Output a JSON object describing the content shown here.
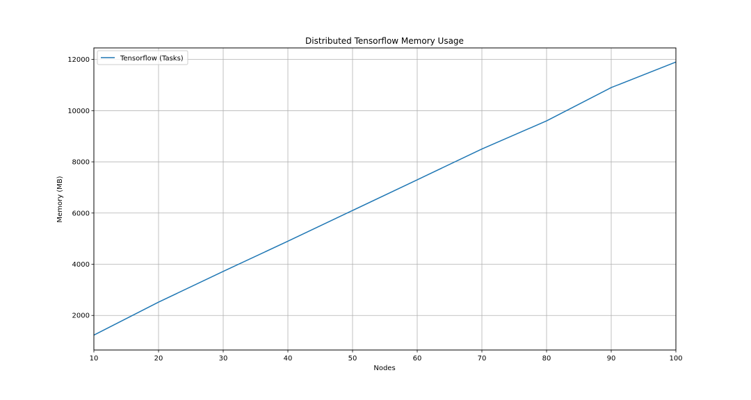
{
  "chart_data": {
    "type": "line",
    "title": "Distributed Tensorflow Memory Usage",
    "xlabel": "Nodes",
    "ylabel": "Memory (MB)",
    "xlim": [
      10,
      100
    ],
    "ylim": [
      650,
      12450
    ],
    "xticks": [
      10,
      20,
      30,
      40,
      50,
      60,
      70,
      80,
      90,
      100
    ],
    "yticks": [
      2000,
      4000,
      6000,
      8000,
      10000,
      12000
    ],
    "grid": true,
    "legend_position": "top-left",
    "series": [
      {
        "name": "Tensorflow (Tasks)",
        "color": "#1f77b4",
        "x": [
          10,
          20,
          30,
          40,
          50,
          60,
          70,
          80,
          90,
          100
        ],
        "y": [
          1230,
          2520,
          3720,
          4900,
          6100,
          7300,
          8500,
          9600,
          10900,
          11900
        ]
      }
    ]
  }
}
